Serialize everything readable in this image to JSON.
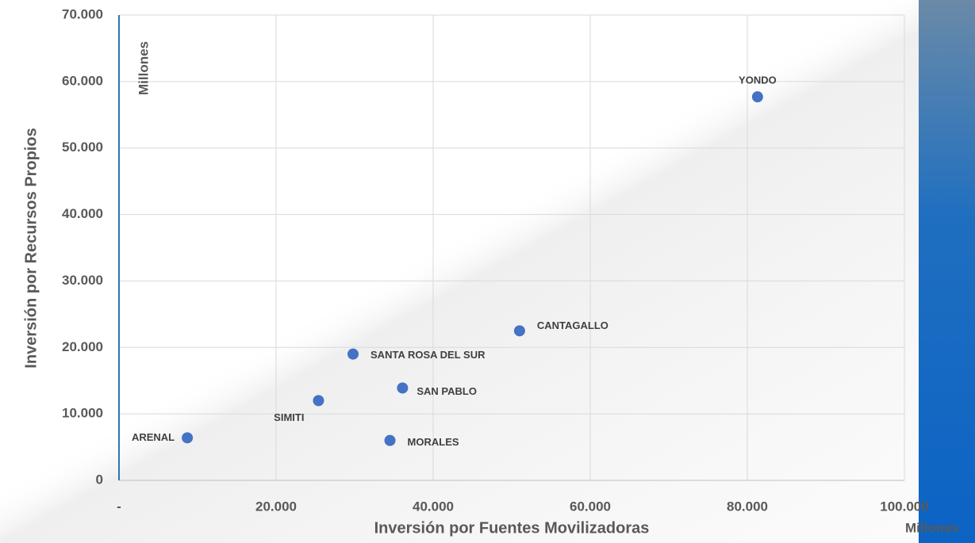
{
  "chart_data": {
    "type": "scatter",
    "x_label": "Inversión por Fuentes Movilizadoras",
    "y_label": "Inversión por Recursos Propios",
    "x_unit": "Millones",
    "y_unit": "Millones",
    "labels": [
      "ARENAL",
      "MORALES",
      "SIMITI",
      "SAN PABLO",
      "SANTA ROSA DEL SUR",
      "CANTAGALLO",
      "YONDO"
    ],
    "x": [
      8700,
      34500,
      25400,
      36100,
      29800,
      51000,
      81300
    ],
    "y": [
      6400,
      6000,
      12000,
      13900,
      19000,
      22500,
      57700
    ],
    "color": "#4472c4",
    "xlim": [
      0,
      100000
    ],
    "ylim": [
      0,
      70000
    ],
    "xticks": [
      {
        "value": 0,
        "label": "-"
      },
      {
        "value": 20000,
        "label": "20.000"
      },
      {
        "value": 40000,
        "label": "40.000"
      },
      {
        "value": 60000,
        "label": "60.000"
      },
      {
        "value": 80000,
        "label": "80.000"
      },
      {
        "value": 100000,
        "label": "100.000"
      }
    ],
    "yticks": [
      0,
      {
        "value": 10000,
        "label": "10.000"
      },
      {
        "value": 20000,
        "label": "20.000"
      },
      {
        "value": 30000,
        "label": "30.000"
      },
      {
        "value": 40000,
        "label": "40.000"
      },
      {
        "value": 50000,
        "label": "50.000"
      },
      {
        "value": 60000,
        "label": "60.000"
      },
      {
        "value": 70000,
        "label": "70.000"
      }
    ],
    "grid": true
  }
}
